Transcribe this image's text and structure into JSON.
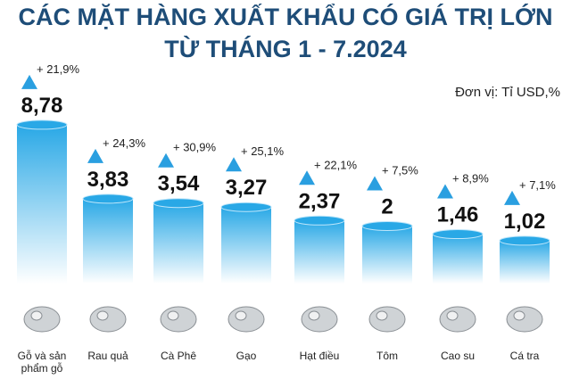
{
  "chart_data": {
    "type": "bar",
    "title": "CÁC MẶT HÀNG XUẤT KHẨU CÓ GIÁ TRỊ LỚN",
    "subtitle": "TỪ THÁNG 1 - 7.2024",
    "unit": "Đơn vị: Tỉ USD,%",
    "categories": [
      "Gỗ và sản phẩm gỗ",
      "Rau quả",
      "Cà Phê",
      "Gạo",
      "Hạt điều",
      "Tôm",
      "Cao su",
      "Cá tra"
    ],
    "values": [
      8.78,
      3.83,
      3.54,
      3.27,
      2.37,
      2,
      1.46,
      1.02
    ],
    "value_labels": [
      "8,78",
      "3,83",
      "3,54",
      "3,27",
      "2,37",
      "2",
      "1,46",
      "1,02"
    ],
    "growth": [
      21.9,
      24.3,
      30.9,
      25.1,
      22.1,
      7.5,
      8.9,
      7.1
    ],
    "growth_labels": [
      "+ 21,9%",
      "+ 24,3%",
      "+ 30,9%",
      "+ 25,1%",
      "+ 22,1%",
      "+ 7,5%",
      "+ 8,9%",
      "+ 7,1%"
    ],
    "color": "#29a8e6",
    "marker_color": "#2a9fe0"
  }
}
